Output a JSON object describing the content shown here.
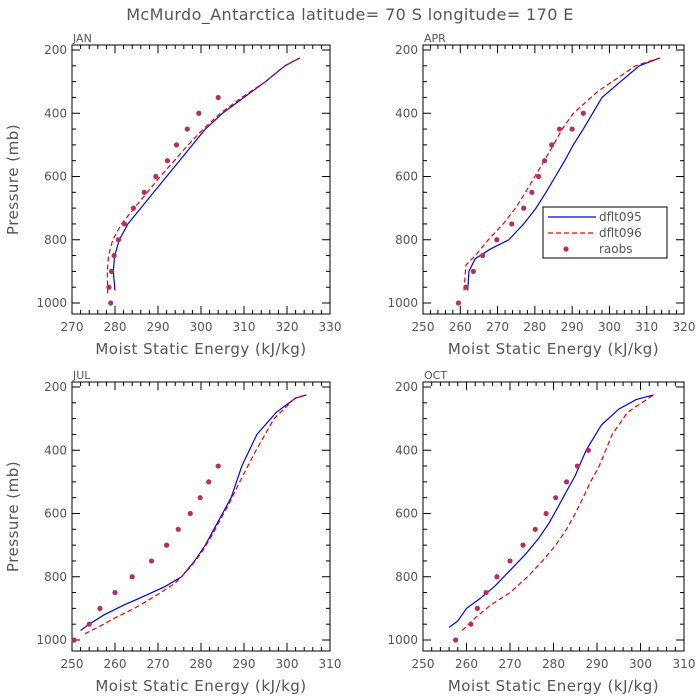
{
  "figure": {
    "title": "McMurdo_Antarctica  latitude= 70 S longitude= 170 E",
    "xlabel": "Moist Static Energy (kJ/kg)",
    "ylabel": "Pressure (mb)",
    "legend": [
      "dflt095",
      "dflt096",
      "raobs"
    ],
    "colors": {
      "dflt095": "#0000ee",
      "dflt096": "#ee0000",
      "raobs": "#b03060"
    }
  },
  "chart_data": [
    {
      "type": "line",
      "panel": "JAN",
      "xlim": [
        270,
        330
      ],
      "xticks": [
        270,
        280,
        290,
        300,
        310,
        320,
        330
      ],
      "ylim": [
        1000,
        200
      ],
      "yticks": [
        200,
        400,
        600,
        800,
        1000
      ],
      "series": [
        {
          "name": "dflt095",
          "style": "solid",
          "x": [
            280,
            279.6,
            279.9,
            281,
            283,
            286,
            289,
            292,
            295,
            298,
            301,
            305,
            310,
            315,
            319.5,
            323
          ],
          "y": [
            960,
            900,
            850,
            800,
            750,
            700,
            650,
            600,
            550,
            500,
            450,
            400,
            350,
            300,
            250,
            225
          ]
        },
        {
          "name": "dflt096",
          "style": "dashed",
          "x": [
            278.3,
            278.2,
            278.5,
            279.5,
            281.5,
            284.5,
            287.5,
            290.5,
            293.8,
            297,
            300.5,
            304.5,
            309.5,
            315,
            319.5,
            323
          ],
          "y": [
            970,
            900,
            850,
            800,
            750,
            700,
            650,
            600,
            550,
            500,
            450,
            400,
            350,
            300,
            250,
            225
          ]
        },
        {
          "name": "raobs",
          "style": "markers",
          "x": [
            279,
            278.6,
            279.2,
            279.8,
            280.8,
            282.2,
            284.3,
            286.8,
            289.5,
            292.2,
            294.3,
            296.8,
            299.5,
            304
          ],
          "y": [
            1000,
            950,
            900,
            850,
            800,
            750,
            700,
            650,
            600,
            550,
            500,
            450,
            400,
            350
          ]
        }
      ]
    },
    {
      "type": "line",
      "panel": "APR",
      "xlim": [
        250,
        320
      ],
      "xticks": [
        250,
        260,
        270,
        280,
        290,
        300,
        310,
        320
      ],
      "ylim": [
        1000,
        200
      ],
      "yticks": [
        200,
        400,
        600,
        800,
        1000
      ],
      "series": [
        {
          "name": "dflt095",
          "style": "solid",
          "x": [
            262,
            262.3,
            264,
            268,
            273,
            277,
            280.3,
            283,
            285.5,
            288,
            290.3,
            293,
            298,
            303,
            308,
            313.5
          ],
          "y": [
            960,
            900,
            860,
            830,
            800,
            750,
            700,
            650,
            600,
            550,
            500,
            450,
            350,
            300,
            250,
            225
          ]
        },
        {
          "name": "dflt096",
          "style": "dashed",
          "x": [
            261,
            261.5,
            264,
            267.5,
            271.5,
            274.8,
            277.5,
            280,
            282.5,
            285,
            287.3,
            290.3,
            297,
            302,
            307,
            313.5
          ],
          "y": [
            960,
            880,
            850,
            800,
            750,
            700,
            650,
            600,
            550,
            500,
            450,
            400,
            330,
            290,
            250,
            225
          ]
        },
        {
          "name": "raobs",
          "style": "markers",
          "x": [
            259.5,
            261.5,
            263.5,
            266,
            269.8,
            273.8,
            277,
            279.2,
            281,
            282.6,
            284.5,
            286.6,
            290,
            293
          ],
          "y": [
            1000,
            950,
            900,
            850,
            800,
            750,
            700,
            650,
            600,
            550,
            500,
            450,
            450,
            400
          ]
        }
      ]
    },
    {
      "type": "line",
      "panel": "JUL",
      "xlim": [
        250,
        310
      ],
      "xticks": [
        250,
        260,
        270,
        280,
        290,
        300,
        310
      ],
      "ylim": [
        1000,
        200
      ],
      "yticks": [
        200,
        400,
        600,
        800,
        1000
      ],
      "series": [
        {
          "name": "dflt095",
          "style": "solid",
          "x": [
            252,
            254,
            257.5,
            262,
            267,
            271.8,
            275.5,
            278.5,
            281,
            283,
            285,
            287,
            289.5,
            293,
            297.5,
            302,
            304.5
          ],
          "y": [
            970,
            950,
            920,
            890,
            860,
            830,
            800,
            750,
            700,
            650,
            600,
            550,
            450,
            350,
            280,
            235,
            225
          ]
        },
        {
          "name": "dflt096",
          "style": "dashed",
          "x": [
            253,
            256,
            260,
            264.5,
            269.5,
            274,
            277.5,
            280.3,
            282.5,
            284.5,
            286.5,
            289,
            292.8,
            297,
            301.5,
            304
          ],
          "y": [
            980,
            960,
            930,
            900,
            860,
            820,
            770,
            720,
            670,
            620,
            570,
            500,
            400,
            300,
            240,
            225
          ]
        },
        {
          "name": "raobs",
          "style": "markers",
          "x": [
            250.5,
            254,
            256.5,
            260,
            264,
            268.5,
            272,
            274.7,
            277.5,
            279.8,
            281.8,
            284
          ],
          "y": [
            1000,
            950,
            900,
            850,
            800,
            750,
            700,
            650,
            600,
            550,
            500,
            450
          ]
        }
      ]
    },
    {
      "type": "line",
      "panel": "OCT",
      "xlim": [
        250,
        310
      ],
      "xticks": [
        250,
        260,
        270,
        280,
        290,
        300,
        310
      ],
      "ylim": [
        1000,
        200
      ],
      "yticks": [
        200,
        400,
        600,
        800,
        1000
      ],
      "series": [
        {
          "name": "dflt095",
          "style": "solid",
          "x": [
            256,
            258,
            260,
            263,
            266.5,
            270,
            273.5,
            276.5,
            279,
            281,
            283,
            285,
            287.5,
            291,
            295,
            299,
            303
          ],
          "y": [
            960,
            940,
            900,
            870,
            830,
            780,
            730,
            680,
            630,
            580,
            530,
            480,
            400,
            320,
            270,
            240,
            225
          ]
        },
        {
          "name": "dflt096",
          "style": "dashed",
          "x": [
            259,
            262,
            265.5,
            270,
            274,
            277.5,
            280.5,
            283,
            285,
            286.8,
            288.5,
            290.5,
            293.5,
            297,
            303
          ],
          "y": [
            970,
            930,
            890,
            850,
            800,
            750,
            700,
            650,
            600,
            550,
            500,
            450,
            350,
            280,
            225
          ]
        },
        {
          "name": "raobs",
          "style": "markers",
          "x": [
            257.5,
            261,
            262.5,
            264.5,
            267,
            270,
            273,
            275.8,
            278.3,
            280.5,
            283,
            285.5,
            288
          ],
          "y": [
            1000,
            950,
            900,
            850,
            800,
            750,
            700,
            650,
            600,
            550,
            500,
            450,
            400
          ]
        }
      ]
    }
  ]
}
